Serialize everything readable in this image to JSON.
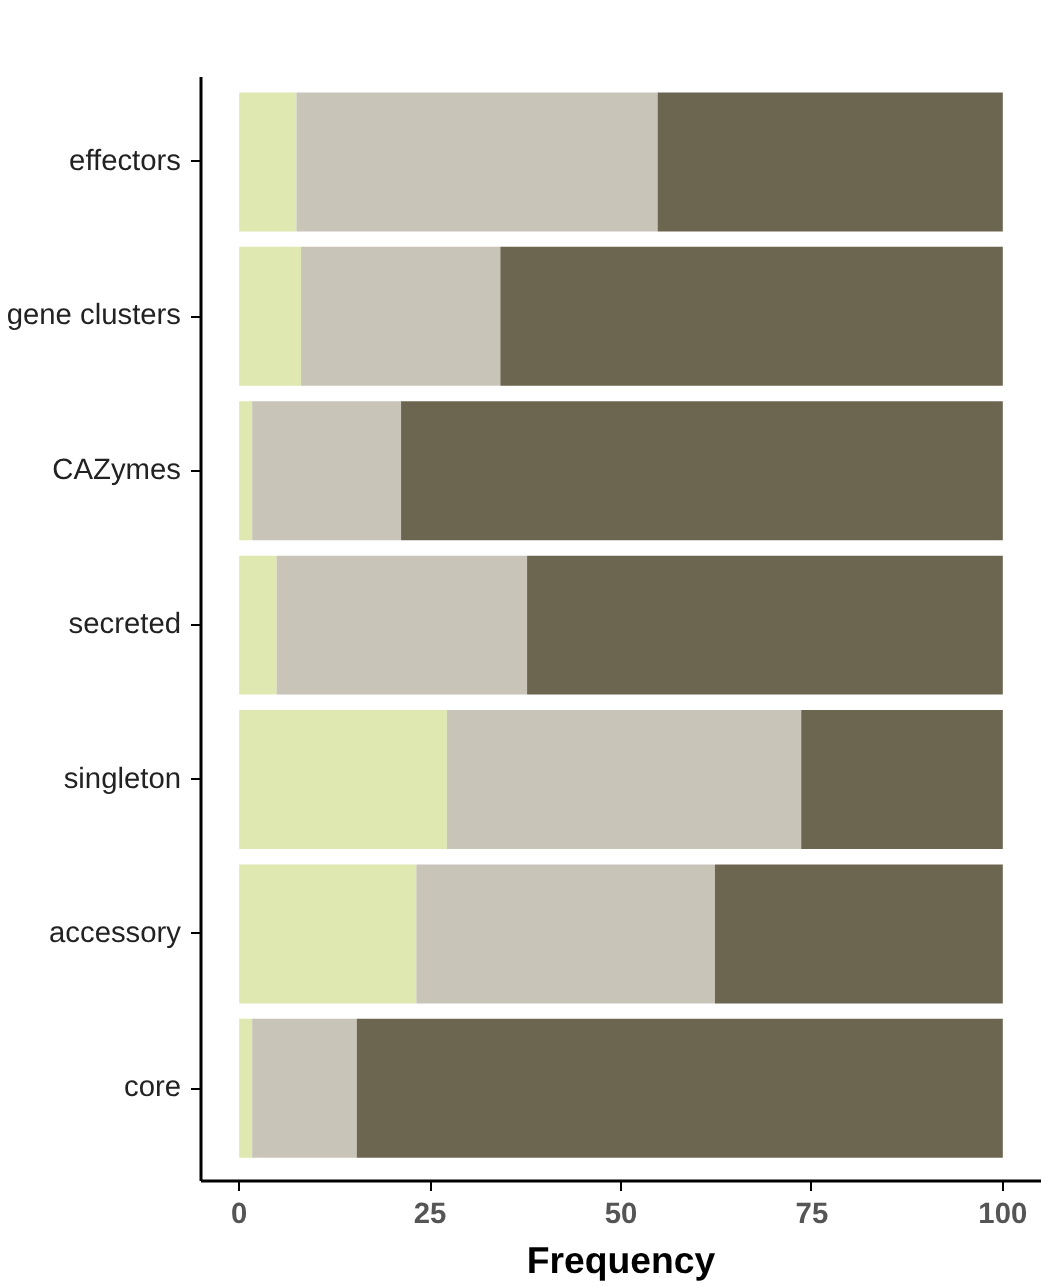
{
  "chart_data": {
    "type": "bar",
    "orientation": "horizontal",
    "stacked": true,
    "xlabel": "Frequency",
    "categories": [
      "effectors",
      "gene clusters",
      "CAZymes",
      "secreted",
      "singleton",
      "accessory",
      "core"
    ],
    "series": [
      {
        "color": "#dfe8b0",
        "values": [
          7.5,
          8.1,
          1.7,
          4.9,
          27.2,
          23.2,
          1.7
        ]
      },
      {
        "color": "#c8c4b8",
        "values": [
          47.3,
          26.1,
          19.5,
          32.8,
          46.4,
          39.1,
          13.7
        ]
      },
      {
        "color": "#6c6651",
        "values": [
          45.2,
          65.8,
          78.8,
          62.3,
          26.4,
          37.7,
          84.6
        ]
      }
    ],
    "xlim": [
      -5,
      105
    ],
    "xticks": [
      0,
      25,
      50,
      75,
      100
    ]
  }
}
